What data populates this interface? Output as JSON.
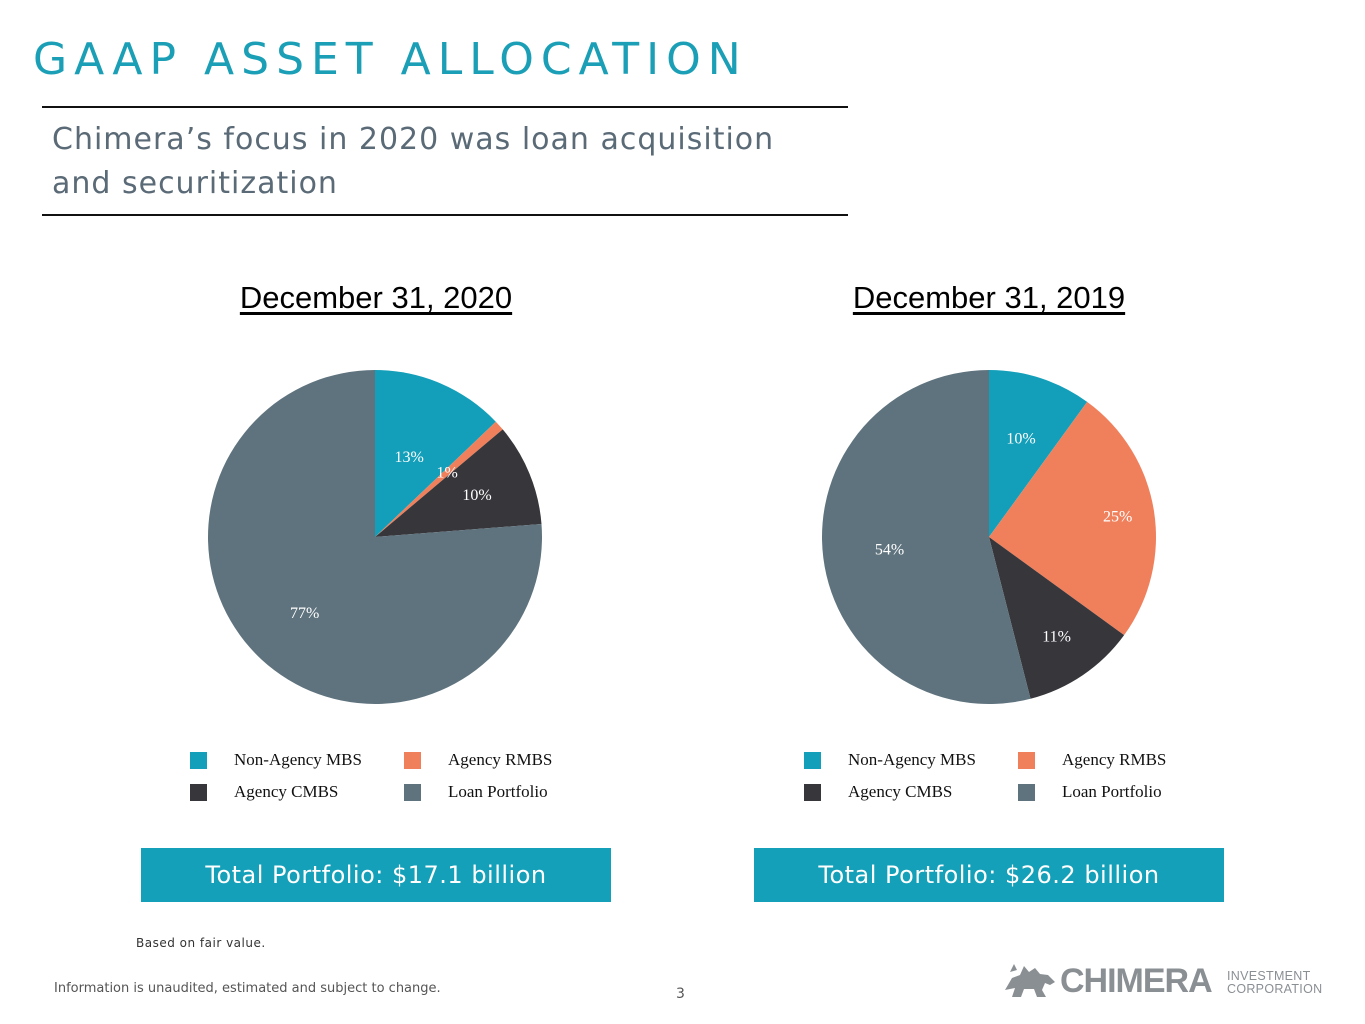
{
  "header": {
    "title": "GAAP ASSET ALLOCATION",
    "subtitle": "Chimera’s focus in 2020 was loan acquisition and securitization"
  },
  "colors": {
    "non_agency_mbs": "#139fb9",
    "agency_rmbs": "#f0805c",
    "agency_cmbs": "#36363b",
    "loan_portfolio": "#5f737e",
    "accent": "#1a9fb6"
  },
  "chart_data": [
    {
      "type": "pie",
      "title": "December 31, 2020",
      "categories": [
        "Non-Agency MBS",
        "Agency RMBS",
        "Agency CMBS",
        "Loan Portfolio"
      ],
      "values": [
        13,
        1,
        10,
        77
      ],
      "value_labels": [
        "13%",
        "1%",
        "10%",
        "77%"
      ],
      "legend_position": "bottom",
      "total_label": "Total Portfolio: $17.1 billion"
    },
    {
      "type": "pie",
      "title": "December 31, 2019",
      "categories": [
        "Non-Agency MBS",
        "Agency RMBS",
        "Agency CMBS",
        "Loan Portfolio"
      ],
      "values": [
        10,
        25,
        11,
        54
      ],
      "value_labels": [
        "10%",
        "25%",
        "11%",
        "54%"
      ],
      "legend_position": "bottom",
      "total_label": "Total Portfolio: $26.2 billion"
    }
  ],
  "legend": [
    "Non-Agency MBS",
    "Agency RMBS",
    "Agency CMBS",
    "Loan Portfolio"
  ],
  "footer": {
    "footnote": "Based on fair value.",
    "disclaimer": "Information is unaudited, estimated and subject to change.",
    "page_number": "3",
    "logo_word": "CHIMERA",
    "logo_sub_1": "INVESTMENT",
    "logo_sub_2": "CORPORATION"
  }
}
